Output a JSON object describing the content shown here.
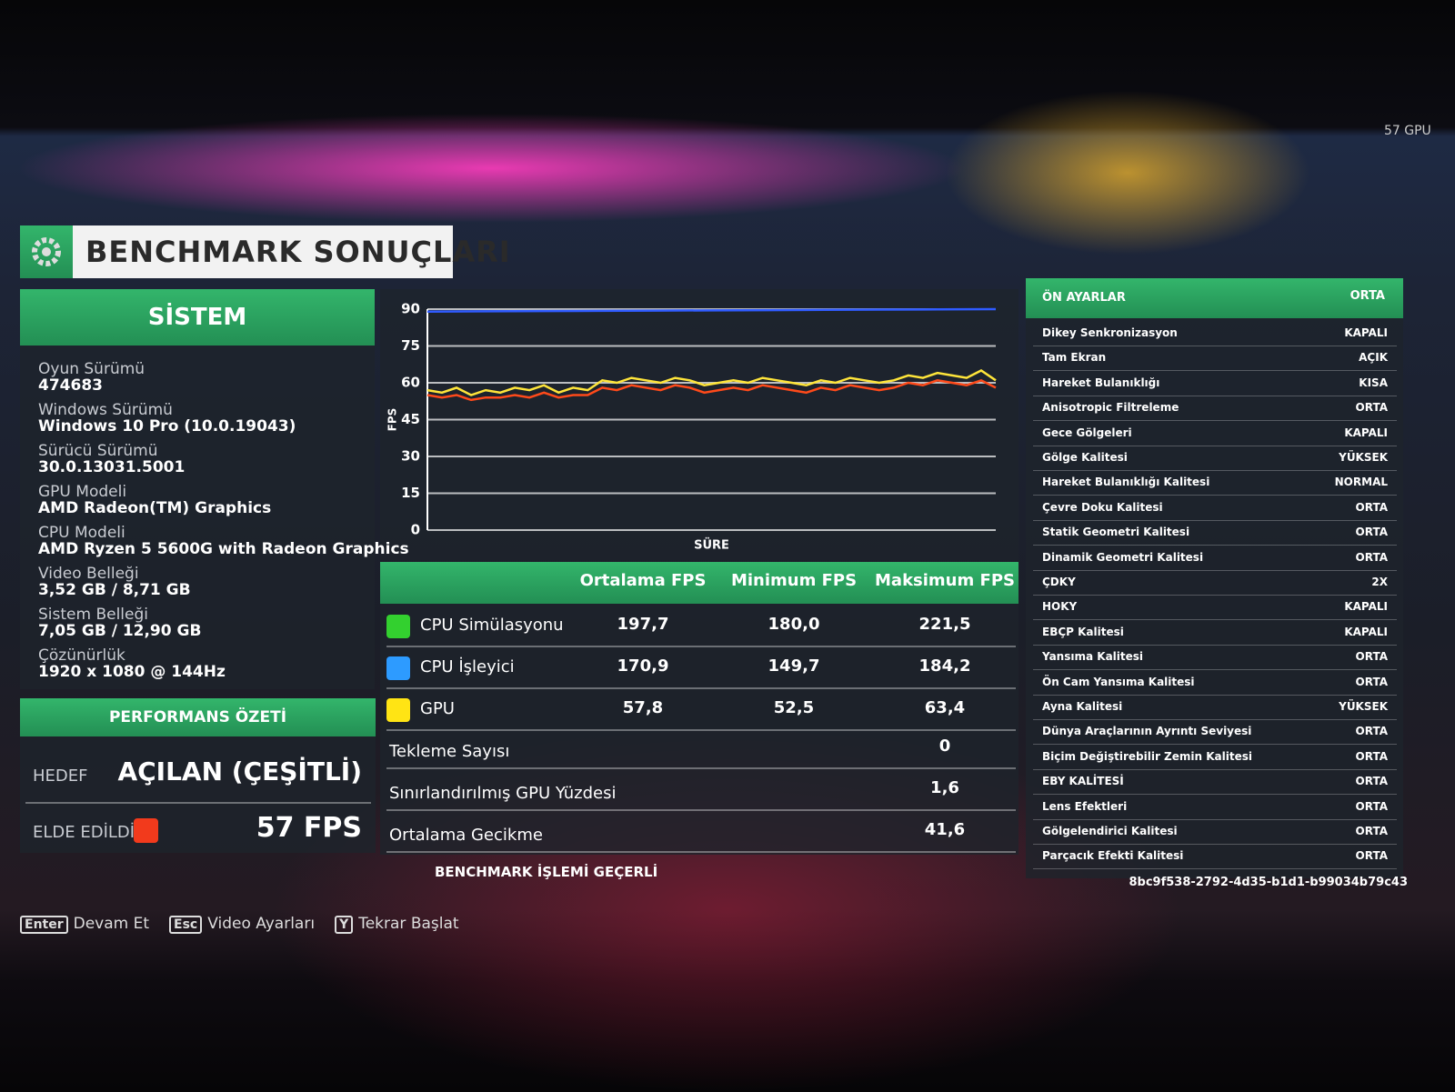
{
  "corner_text": "57 GPU",
  "header": {
    "title": "BENCHMARK SONUÇLARI"
  },
  "system": {
    "title": "SİSTEM",
    "items": [
      {
        "label": "Oyun Sürümü",
        "value": "474683"
      },
      {
        "label": "Windows Sürümü",
        "value": "Windows 10 Pro (10.0.19043)"
      },
      {
        "label": "Sürücü Sürümü",
        "value": "30.0.13031.5001"
      },
      {
        "label": "GPU Modeli",
        "value": "AMD Radeon(TM) Graphics"
      },
      {
        "label": "CPU Modeli",
        "value": "AMD Ryzen 5 5600G with Radeon Graphics"
      },
      {
        "label": "Video Belleği",
        "value": "3,52 GB / 8,71 GB"
      },
      {
        "label": "Sistem Belleği",
        "value": "7,05 GB / 12,90 GB"
      },
      {
        "label": "Çözünürlük",
        "value": "1920 x 1080 @ 144Hz"
      }
    ]
  },
  "performance": {
    "title": "PERFORMANS ÖZETİ",
    "target_label": "HEDEF",
    "target_value": "AÇILAN (ÇEŞİTLİ)",
    "achieved_label": "ELDE EDİLDİ",
    "achieved_value": "57 FPS"
  },
  "chart": {
    "type": "line",
    "y_label": "FPS",
    "x_label": "SÜRE",
    "ylim": [
      0,
      90
    ],
    "yticks": [
      0,
      15,
      30,
      45,
      60,
      75,
      90
    ],
    "grid": true,
    "series": [
      {
        "color": "#2f5bff",
        "values": [
          89,
          89.1,
          89.2,
          89.3,
          89.4,
          89.5,
          89.6,
          89.7,
          89.8,
          89.9,
          90
        ]
      },
      {
        "color": "#ffe53a",
        "values": [
          57,
          56,
          58,
          55,
          57,
          56,
          58,
          57,
          59,
          56,
          58,
          57,
          61,
          60,
          62,
          61,
          60,
          62,
          61,
          59,
          60,
          61,
          60,
          62,
          61,
          60,
          59,
          61,
          60,
          62,
          61,
          60,
          61,
          63,
          62,
          64,
          63,
          62,
          65,
          61
        ]
      },
      {
        "color": "#ff4a1a",
        "values": [
          55,
          54,
          55,
          53,
          54,
          54,
          55,
          54,
          56,
          54,
          55,
          55,
          58,
          57,
          59,
          58,
          57,
          59,
          58,
          56,
          57,
          58,
          57,
          59,
          58,
          57,
          56,
          58,
          57,
          59,
          58,
          57,
          58,
          60,
          59,
          61,
          60,
          59,
          61,
          58
        ]
      }
    ]
  },
  "table": {
    "columns": [
      "Ortalama FPS",
      "Minimum FPS",
      "Maksimum FPS"
    ],
    "rows": [
      {
        "name": "CPU Simülasyonu",
        "color": "#33d02f",
        "values": [
          "197,7",
          "180,0",
          "221,5"
        ]
      },
      {
        "name": "CPU İşleyici",
        "color": "#2d9bff",
        "values": [
          "170,9",
          "149,7",
          "184,2"
        ]
      },
      {
        "name": "GPU",
        "color": "#ffe414",
        "values": [
          "57,8",
          "52,5",
          "63,4"
        ]
      }
    ]
  },
  "stats": [
    {
      "label": "Tekleme Sayısı",
      "value": "0"
    },
    {
      "label": "Sınırlandırılmış GPU Yüzdesi",
      "value": "1,6"
    },
    {
      "label": "Ortalama Gecikme",
      "value": "41,6"
    }
  ],
  "status": "BENCHMARK İŞLEMİ GEÇERLİ",
  "settings": {
    "title": "ÖN AYARLAR",
    "value": "ORTA",
    "items": [
      {
        "label": "Dikey Senkronizasyon",
        "value": "KAPALI"
      },
      {
        "label": "Tam Ekran",
        "value": "AÇIK"
      },
      {
        "label": "Hareket Bulanıklığı",
        "value": "KISA"
      },
      {
        "label": "Anisotropic Filtreleme",
        "value": "ORTA"
      },
      {
        "label": "Gece Gölgeleri",
        "value": "KAPALI"
      },
      {
        "label": "Gölge Kalitesi",
        "value": "YÜKSEK"
      },
      {
        "label": "Hareket Bulanıklığı Kalitesi",
        "value": "NORMAL"
      },
      {
        "label": "Çevre Doku Kalitesi",
        "value": "ORTA"
      },
      {
        "label": "Statik Geometri Kalitesi",
        "value": "ORTA"
      },
      {
        "label": "Dinamik Geometri Kalitesi",
        "value": "ORTA"
      },
      {
        "label": "ÇDKY",
        "value": "2X"
      },
      {
        "label": "HOKY",
        "value": "KAPALI"
      },
      {
        "label": "EBÇP Kalitesi",
        "value": "KAPALI"
      },
      {
        "label": "Yansıma Kalitesi",
        "value": "ORTA"
      },
      {
        "label": "Ön Cam Yansıma Kalitesi",
        "value": "ORTA"
      },
      {
        "label": "Ayna Kalitesi",
        "value": "YÜKSEK"
      },
      {
        "label": "Dünya Araçlarının Ayrıntı Seviyesi",
        "value": "ORTA"
      },
      {
        "label": "Biçim Değiştirebilir Zemin Kalitesi",
        "value": "ORTA"
      },
      {
        "label": "EBY KALİTESİ",
        "value": "ORTA"
      },
      {
        "label": "Lens Efektleri",
        "value": "ORTA"
      },
      {
        "label": "Gölgelendirici Kalitesi",
        "value": "ORTA"
      },
      {
        "label": "Parçacık Efekti Kalitesi",
        "value": "ORTA"
      }
    ]
  },
  "run_id": "8bc9f538-2792-4d35-b1d1-b99034b79c43",
  "buttons": [
    {
      "key": "Enter",
      "label": "Devam Et"
    },
    {
      "key": "Esc",
      "label": "Video Ayarları"
    },
    {
      "key": "Y",
      "label": "Tekrar Başlat"
    }
  ]
}
